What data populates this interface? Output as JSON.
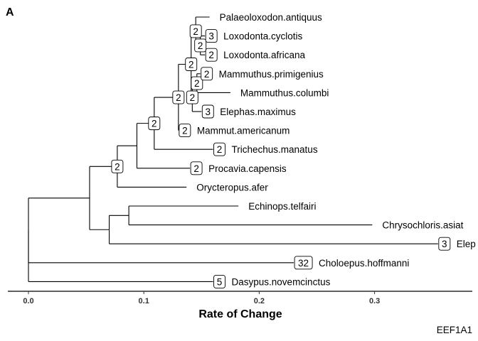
{
  "panel_tag": "A",
  "caption": "EEF1A1",
  "chart_data": {
    "type": "tree",
    "xlabel": "Rate of Change",
    "xlim": [
      -0.018,
      0.385
    ],
    "xticks": [
      {
        "value": 0.0,
        "label": "0.0"
      },
      {
        "value": 0.1,
        "label": "0.1"
      },
      {
        "value": 0.2,
        "label": "0.2"
      },
      {
        "value": 0.3,
        "label": "0.3"
      }
    ],
    "tips": [
      {
        "id": "t1",
        "label": "Palaeoloxodon.antiquus",
        "row": 1,
        "x": 0.157
      },
      {
        "id": "t2",
        "label": "Loxodonta.cyclotis",
        "row": 2,
        "x": 0.153,
        "badge": "3"
      },
      {
        "id": "t3",
        "label": "Loxodonta.africana",
        "row": 3,
        "x": 0.153,
        "badge": "2"
      },
      {
        "id": "t4",
        "label": "Mammuthus.primigenius",
        "row": 4,
        "x": 0.149,
        "badge": "2"
      },
      {
        "id": "t5",
        "label": "Mammuthus.columbi",
        "row": 5,
        "x": 0.175
      },
      {
        "id": "t6",
        "label": "Elephas.maximus",
        "row": 6,
        "x": 0.15,
        "badge": "3"
      },
      {
        "id": "t7",
        "label": "Mammut.americanum",
        "row": 7,
        "x": 0.13,
        "badge": "2"
      },
      {
        "id": "t8",
        "label": "Trichechus.manatus",
        "row": 8,
        "x": 0.16,
        "badge": "2"
      },
      {
        "id": "t9",
        "label": "Procavia.capensis",
        "row": 9,
        "x": 0.14,
        "badge": "2"
      },
      {
        "id": "t10",
        "label": "Orycteropus.afer",
        "row": 10,
        "x": 0.137
      },
      {
        "id": "t11",
        "label": "Echinops.telfairi",
        "row": 11,
        "x": 0.182
      },
      {
        "id": "t12",
        "label": "Chrysochloris.asiat",
        "row": 12,
        "x": 0.298
      },
      {
        "id": "t13",
        "label": "Elep",
        "row": 13,
        "x": 0.355,
        "badge": "3"
      },
      {
        "id": "t14",
        "label": "Choloepus.hoffmanni",
        "row": 14,
        "x": 0.23,
        "badge": "32"
      },
      {
        "id": "t15",
        "label": "Dasypus.novemcinctus",
        "row": 15,
        "x": 0.16,
        "badge": "5"
      }
    ],
    "nodes": [
      {
        "id": "n_lox",
        "x": 0.149,
        "children": [
          "t2",
          "t3"
        ],
        "badge": "2"
      },
      {
        "id": "n_plx",
        "x": 0.145,
        "children": [
          "t1",
          "n_lox"
        ],
        "badge": "2"
      },
      {
        "id": "n_mam",
        "x": 0.146,
        "children": [
          "t4",
          "t5"
        ],
        "badge": "2"
      },
      {
        "id": "n_mamel",
        "x": 0.142,
        "children": [
          "n_mam",
          "t6"
        ],
        "badge": "2"
      },
      {
        "id": "n_ele",
        "x": 0.141,
        "children": [
          "n_plx",
          "n_mamel"
        ],
        "badge": "2"
      },
      {
        "id": "n_prob",
        "x": 0.13,
        "children": [
          "n_ele",
          "t7"
        ],
        "badge": "2"
      },
      {
        "id": "n_tethy",
        "x": 0.109,
        "children": [
          "n_prob",
          "t8"
        ],
        "badge": "2"
      },
      {
        "id": "n_paen",
        "x": 0.094,
        "children": [
          "n_tethy",
          "t9"
        ]
      },
      {
        "id": "n_afro",
        "x": 0.077,
        "children": [
          "n_paen",
          "t10"
        ],
        "badge": "2"
      },
      {
        "id": "n_ten",
        "x": 0.087,
        "children": [
          "t11",
          "t12"
        ]
      },
      {
        "id": "n_afins",
        "x": 0.07,
        "children": [
          "n_ten",
          "t13"
        ]
      },
      {
        "id": "n_afr",
        "x": 0.053,
        "children": [
          "n_afro",
          "n_afins"
        ]
      },
      {
        "id": "n_root2",
        "x": 0.0,
        "children": [
          "n_afr",
          "t14"
        ]
      },
      {
        "id": "n_root",
        "x": 0.0,
        "children": [
          "n_root2",
          "t15"
        ]
      }
    ]
  }
}
